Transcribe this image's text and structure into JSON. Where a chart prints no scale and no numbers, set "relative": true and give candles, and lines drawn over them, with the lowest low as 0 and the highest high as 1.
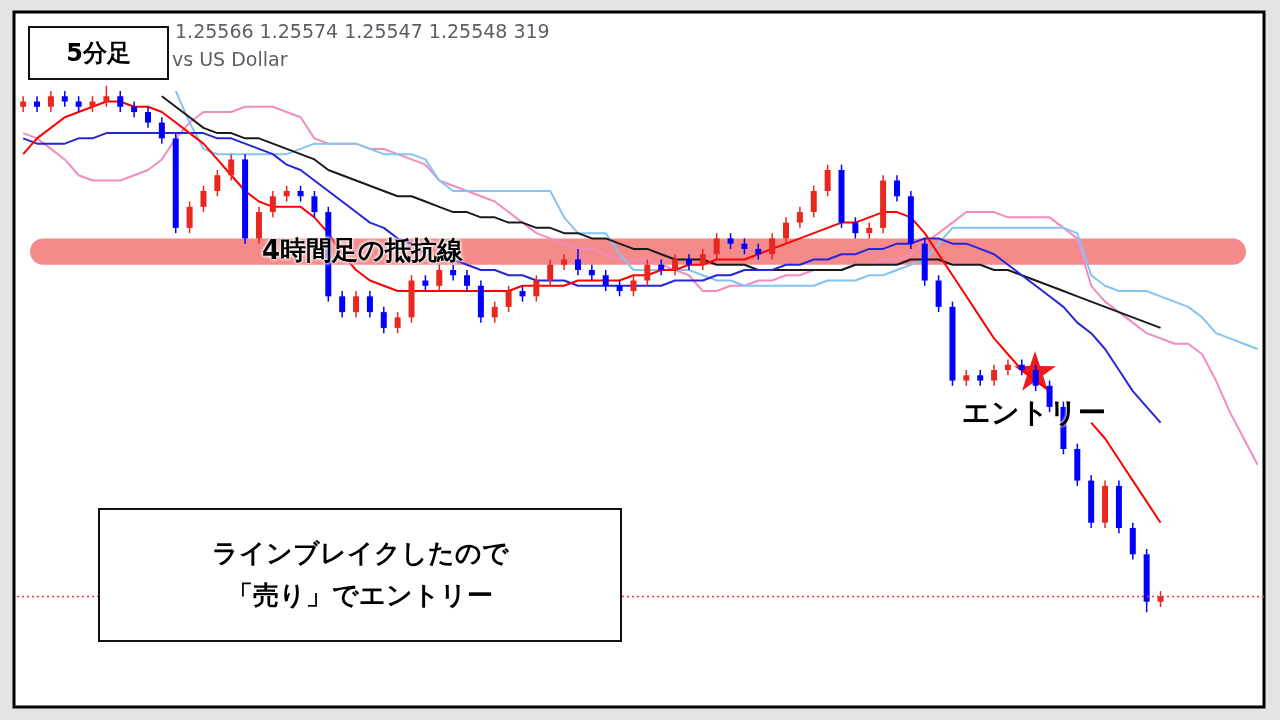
{
  "chart_data": {
    "type": "candlestick",
    "relative": true,
    "categories": [
      null,
      null,
      null,
      null,
      null,
      null,
      null,
      null,
      null,
      null,
      null,
      null,
      null,
      null,
      null,
      null,
      null,
      null,
      null,
      null,
      null,
      null,
      null,
      null,
      null,
      null,
      null,
      null,
      null,
      null,
      null,
      null,
      null,
      null,
      null,
      null,
      null,
      null,
      null,
      null,
      null,
      null,
      null,
      null,
      null,
      null,
      null,
      null,
      null,
      null,
      null,
      null,
      null,
      null,
      null,
      null,
      null,
      null,
      null,
      null,
      null,
      null,
      null,
      null,
      null,
      null,
      null,
      null,
      null,
      null,
      null,
      null,
      null,
      null,
      null,
      null,
      null,
      null,
      null,
      null,
      null,
      null,
      null,
      null,
      null,
      null,
      null,
      null,
      null,
      null
    ],
    "ohlc": [
      [
        0.96,
        0.98,
        0.95,
        0.97
      ],
      [
        0.97,
        0.98,
        0.95,
        0.96
      ],
      [
        0.96,
        0.99,
        0.95,
        0.98
      ],
      [
        0.98,
        0.99,
        0.96,
        0.97
      ],
      [
        0.97,
        0.98,
        0.95,
        0.96
      ],
      [
        0.96,
        0.98,
        0.95,
        0.97
      ],
      [
        0.97,
        1,
        0.96,
        0.98
      ],
      [
        0.98,
        0.99,
        0.95,
        0.96
      ],
      [
        0.96,
        0.97,
        0.94,
        0.95
      ],
      [
        0.95,
        0.96,
        0.92,
        0.93
      ],
      [
        0.93,
        0.94,
        0.89,
        0.9
      ],
      [
        0.9,
        0.91,
        0.72,
        0.73
      ],
      [
        0.73,
        0.78,
        0.72,
        0.77
      ],
      [
        0.77,
        0.81,
        0.76,
        0.8
      ],
      [
        0.8,
        0.84,
        0.79,
        0.83
      ],
      [
        0.83,
        0.87,
        0.82,
        0.86
      ],
      [
        0.86,
        0.87,
        0.7,
        0.71
      ],
      [
        0.71,
        0.77,
        0.7,
        0.76
      ],
      [
        0.76,
        0.8,
        0.75,
        0.79
      ],
      [
        0.79,
        0.81,
        0.78,
        0.8
      ],
      [
        0.8,
        0.81,
        0.78,
        0.79
      ],
      [
        0.79,
        0.8,
        0.75,
        0.76
      ],
      [
        0.76,
        0.77,
        0.59,
        0.6
      ],
      [
        0.6,
        0.61,
        0.56,
        0.57
      ],
      [
        0.57,
        0.61,
        0.56,
        0.6
      ],
      [
        0.6,
        0.61,
        0.56,
        0.57
      ],
      [
        0.57,
        0.58,
        0.53,
        0.54
      ],
      [
        0.54,
        0.57,
        0.53,
        0.56
      ],
      [
        0.56,
        0.64,
        0.55,
        0.63
      ],
      [
        0.63,
        0.64,
        0.61,
        0.62
      ],
      [
        0.62,
        0.66,
        0.61,
        0.65
      ],
      [
        0.65,
        0.66,
        0.63,
        0.64
      ],
      [
        0.64,
        0.65,
        0.61,
        0.62
      ],
      [
        0.62,
        0.63,
        0.55,
        0.56
      ],
      [
        0.56,
        0.59,
        0.55,
        0.58
      ],
      [
        0.58,
        0.62,
        0.57,
        0.61
      ],
      [
        0.61,
        0.62,
        0.59,
        0.6
      ],
      [
        0.6,
        0.64,
        0.59,
        0.63
      ],
      [
        0.63,
        0.67,
        0.62,
        0.66
      ],
      [
        0.66,
        0.68,
        0.65,
        0.67
      ],
      [
        0.67,
        0.69,
        0.64,
        0.65
      ],
      [
        0.65,
        0.66,
        0.63,
        0.64
      ],
      [
        0.64,
        0.65,
        0.61,
        0.62
      ],
      [
        0.62,
        0.63,
        0.6,
        0.61
      ],
      [
        0.61,
        0.64,
        0.6,
        0.63
      ],
      [
        0.63,
        0.67,
        0.62,
        0.66
      ],
      [
        0.66,
        0.67,
        0.64,
        0.65
      ],
      [
        0.65,
        0.68,
        0.64,
        0.67
      ],
      [
        0.67,
        0.68,
        0.65,
        0.66
      ],
      [
        0.66,
        0.69,
        0.65,
        0.68
      ],
      [
        0.68,
        0.72,
        0.67,
        0.71
      ],
      [
        0.71,
        0.72,
        0.69,
        0.7
      ],
      [
        0.7,
        0.71,
        0.68,
        0.69
      ],
      [
        0.69,
        0.7,
        0.67,
        0.68
      ],
      [
        0.68,
        0.72,
        0.67,
        0.71
      ],
      [
        0.71,
        0.75,
        0.7,
        0.74
      ],
      [
        0.74,
        0.77,
        0.73,
        0.76
      ],
      [
        0.76,
        0.81,
        0.75,
        0.8
      ],
      [
        0.8,
        0.85,
        0.79,
        0.84
      ],
      [
        0.84,
        0.85,
        0.73,
        0.74
      ],
      [
        0.74,
        0.75,
        0.71,
        0.72
      ],
      [
        0.72,
        0.74,
        0.71,
        0.73
      ],
      [
        0.73,
        0.83,
        0.72,
        0.82
      ],
      [
        0.82,
        0.83,
        0.78,
        0.79
      ],
      [
        0.79,
        0.8,
        0.69,
        0.7
      ],
      [
        0.7,
        0.71,
        0.62,
        0.63
      ],
      [
        0.63,
        0.64,
        0.57,
        0.58
      ],
      [
        0.58,
        0.59,
        0.43,
        0.44
      ],
      [
        0.44,
        0.46,
        0.43,
        0.45
      ],
      [
        0.45,
        0.46,
        0.43,
        0.44
      ],
      [
        0.44,
        0.47,
        0.43,
        0.46
      ],
      [
        0.46,
        0.48,
        0.45,
        0.47
      ],
      [
        0.47,
        0.48,
        0.45,
        0.46
      ],
      [
        0.46,
        0.47,
        0.42,
        0.43
      ],
      [
        0.43,
        0.44,
        0.38,
        0.39
      ],
      [
        0.39,
        0.4,
        0.3,
        0.31
      ],
      [
        0.31,
        0.32,
        0.24,
        0.25
      ],
      [
        0.25,
        0.26,
        0.16,
        0.17
      ],
      [
        0.17,
        0.25,
        0.16,
        0.24
      ],
      [
        0.24,
        0.25,
        0.15,
        0.16
      ],
      [
        0.16,
        0.17,
        0.1,
        0.11
      ],
      [
        0.11,
        0.12,
        0,
        0.02
      ],
      [
        0.02,
        0.04,
        0.01,
        0.03
      ],
      null,
      null,
      null,
      null,
      null,
      null,
      null
    ],
    "colors": [
      "#e8281e",
      "#0000ff",
      "#e8281e",
      "#0000ff",
      "#0000ff",
      "#e8281e",
      "#e8281e",
      "#0000ff",
      "#0000ff",
      "#0000ff",
      "#0000ff",
      "#0000ff",
      "#e8281e",
      "#e8281e",
      "#e8281e",
      "#e8281e",
      "#0000ff",
      "#e8281e",
      "#e8281e",
      "#e8281e",
      "#0000ff",
      "#0000ff",
      "#0000ff",
      "#0000ff",
      "#e8281e",
      "#0000ff",
      "#0000ff",
      "#e8281e",
      "#e8281e",
      "#0000ff",
      "#e8281e",
      "#0000ff",
      "#0000ff",
      "#0000ff",
      "#e8281e",
      "#e8281e",
      "#0000ff",
      "#e8281e",
      "#e8281e",
      "#e8281e",
      "#0000ff",
      "#0000ff",
      "#0000ff",
      "#0000ff",
      "#e8281e",
      "#e8281e",
      "#0000ff",
      "#e8281e",
      "#0000ff",
      "#e8281e",
      "#e8281e",
      "#0000ff",
      "#0000ff",
      "#0000ff",
      "#e8281e",
      "#e8281e",
      "#e8281e",
      "#e8281e",
      "#e8281e",
      "#0000ff",
      "#0000ff",
      "#e8281e",
      "#e8281e",
      "#0000ff",
      "#0000ff",
      "#0000ff",
      "#0000ff",
      "#0000ff",
      "#e8281e",
      "#0000ff",
      "#e8281e",
      "#e8281e",
      "#0000ff",
      "#0000ff",
      "#0000ff",
      "#0000ff",
      "#0000ff",
      "#0000ff",
      "#e8281e",
      "#0000ff",
      "#0000ff",
      "#0000ff",
      "#e8281e",
      null,
      null,
      null,
      null,
      null,
      null,
      null
    ],
    "series": [
      {
        "type": "line",
        "color": "#f28cc0",
        "values": [
          0.91,
          0.9,
          0.88,
          0.86,
          0.83,
          0.82,
          0.82,
          0.82,
          0.83,
          0.84,
          0.86,
          0.9,
          0.93,
          0.95,
          0.95,
          0.95,
          0.96,
          0.96,
          0.96,
          0.95,
          0.94,
          0.9,
          0.89,
          0.89,
          0.89,
          0.88,
          0.88,
          0.87,
          0.86,
          0.85,
          0.82,
          0.81,
          0.8,
          0.79,
          0.78,
          0.76,
          0.74,
          0.72,
          0.71,
          0.7,
          0.69,
          0.69,
          0.68,
          0.67,
          0.67,
          0.67,
          0.66,
          0.65,
          0.64,
          0.61,
          0.61,
          0.62,
          0.62,
          0.63,
          0.63,
          0.64,
          0.64,
          0.65,
          0.65,
          0.65,
          0.66,
          0.66,
          0.67,
          0.67,
          0.68,
          0.7,
          0.72,
          0.74,
          0.76,
          0.76,
          0.76,
          0.75,
          0.75,
          0.75,
          0.75,
          0.73,
          0.71,
          0.62,
          0.59,
          0.57,
          0.55,
          0.53,
          0.52,
          0.51,
          0.51,
          0.49,
          0.44,
          0.38,
          0.33,
          0.28
        ]
      },
      {
        "type": "line",
        "color": "#84c4f4",
        "values": [
          null,
          null,
          null,
          null,
          null,
          null,
          null,
          null,
          null,
          null,
          null,
          0.99,
          0.93,
          0.88,
          0.87,
          0.87,
          0.87,
          0.87,
          0.87,
          0.87,
          0.88,
          0.89,
          0.89,
          0.89,
          0.89,
          0.88,
          0.87,
          0.87,
          0.87,
          0.86,
          0.82,
          0.8,
          0.8,
          0.8,
          0.8,
          0.8,
          0.8,
          0.8,
          0.8,
          0.75,
          0.72,
          0.72,
          0.72,
          0.68,
          0.65,
          0.65,
          0.65,
          0.65,
          0.65,
          0.64,
          0.63,
          0.63,
          0.62,
          0.62,
          0.62,
          0.62,
          0.62,
          0.62,
          0.63,
          0.63,
          0.63,
          0.64,
          0.64,
          0.65,
          0.66,
          0.67,
          0.7,
          0.73,
          0.73,
          0.73,
          0.73,
          0.73,
          0.73,
          0.73,
          0.73,
          0.73,
          0.72,
          0.64,
          0.62,
          0.61,
          0.61,
          0.61,
          0.6,
          0.59,
          0.58,
          0.56,
          0.53,
          0.52,
          0.51,
          0.5
        ]
      },
      {
        "type": "line",
        "color": "#1a1a1a",
        "values": [
          null,
          null,
          null,
          null,
          null,
          null,
          null,
          null,
          null,
          null,
          0.98,
          0.96,
          0.94,
          0.92,
          0.91,
          0.91,
          0.9,
          0.9,
          0.89,
          0.88,
          0.87,
          0.86,
          0.84,
          0.83,
          0.82,
          0.81,
          0.8,
          0.79,
          0.79,
          0.78,
          0.77,
          0.76,
          0.76,
          0.75,
          0.75,
          0.74,
          0.74,
          0.73,
          0.73,
          0.72,
          0.72,
          0.71,
          0.71,
          0.7,
          0.69,
          0.69,
          0.68,
          0.67,
          0.67,
          0.67,
          0.66,
          0.66,
          0.66,
          0.65,
          0.65,
          0.65,
          0.65,
          0.65,
          0.65,
          0.65,
          0.66,
          0.66,
          0.66,
          0.66,
          0.67,
          0.67,
          0.67,
          0.66,
          0.66,
          0.66,
          0.65,
          0.65,
          0.64,
          0.63,
          0.62,
          0.61,
          0.6,
          0.59,
          0.58,
          0.57,
          0.56,
          0.55,
          0.54,
          null,
          null,
          null,
          null,
          null,
          null,
          null
        ]
      },
      {
        "type": "line",
        "color": "#2626d9",
        "values": [
          0.9,
          0.89,
          0.89,
          0.89,
          0.9,
          0.9,
          0.91,
          0.91,
          0.91,
          0.91,
          0.91,
          0.91,
          0.91,
          0.91,
          0.9,
          0.9,
          0.89,
          0.88,
          0.87,
          0.85,
          0.84,
          0.82,
          0.8,
          0.78,
          0.76,
          0.74,
          0.73,
          0.71,
          0.7,
          0.68,
          null,
          0.67,
          0.66,
          0.65,
          0.65,
          0.64,
          0.64,
          0.63,
          0.63,
          0.63,
          0.62,
          0.62,
          0.62,
          0.62,
          0.62,
          0.62,
          0.62,
          0.63,
          0.63,
          0.63,
          0.64,
          0.64,
          0.65,
          0.65,
          0.65,
          0.66,
          0.66,
          0.67,
          0.67,
          0.68,
          0.68,
          0.69,
          0.69,
          0.7,
          0.7,
          0.71,
          0.71,
          0.7,
          0.7,
          0.69,
          0.68,
          0.66,
          0.64,
          0.62,
          0.6,
          0.58,
          0.55,
          0.53,
          0.5,
          0.46,
          0.42,
          0.39,
          0.36,
          null,
          null,
          null,
          null,
          null,
          null,
          null
        ]
      },
      {
        "type": "line",
        "color": "#ff0000",
        "values": [
          0.87,
          0.9,
          0.92,
          0.94,
          0.95,
          0.96,
          0.97,
          0.97,
          0.96,
          0.96,
          0.95,
          0.93,
          0.91,
          0.89,
          0.86,
          0.83,
          0.8,
          0.78,
          0.77,
          0.77,
          0.77,
          0.75,
          0.72,
          0.68,
          0.65,
          0.63,
          0.62,
          0.61,
          0.61,
          0.61,
          0.61,
          0.61,
          0.61,
          0.61,
          0.61,
          0.61,
          0.62,
          0.62,
          0.62,
          0.62,
          0.63,
          0.63,
          0.63,
          0.63,
          0.64,
          0.64,
          0.65,
          0.65,
          0.66,
          0.66,
          0.67,
          0.67,
          0.67,
          0.68,
          0.69,
          0.7,
          0.71,
          0.72,
          0.73,
          0.74,
          0.74,
          0.75,
          0.76,
          0.76,
          0.75,
          0.72,
          0.68,
          0.64,
          0.6,
          0.56,
          0.52,
          0.49,
          0.46,
          0.44,
          0.42,
          null,
          null,
          0.36,
          0.33,
          0.29,
          0.25,
          0.21,
          0.17,
          null,
          null,
          null,
          null,
          null,
          null,
          null
        ]
      }
    ],
    "bands": [
      {
        "axis": "y",
        "from": 0.66,
        "to": 0.71,
        "label": "4時間足の抵抗線",
        "color": "#f48a8a"
      }
    ],
    "ref_lines": [
      {
        "axis": "y",
        "value": 0.03,
        "color": "#e53935",
        "line_style": "dotted"
      }
    ],
    "annotations": [
      "1.25566 1.25574 1.25547 1.25548 319",
      "vs US Dollar",
      "5分足",
      "エントリー",
      "ラインブレイクしたので「売り」でエントリー"
    ]
  }
}
